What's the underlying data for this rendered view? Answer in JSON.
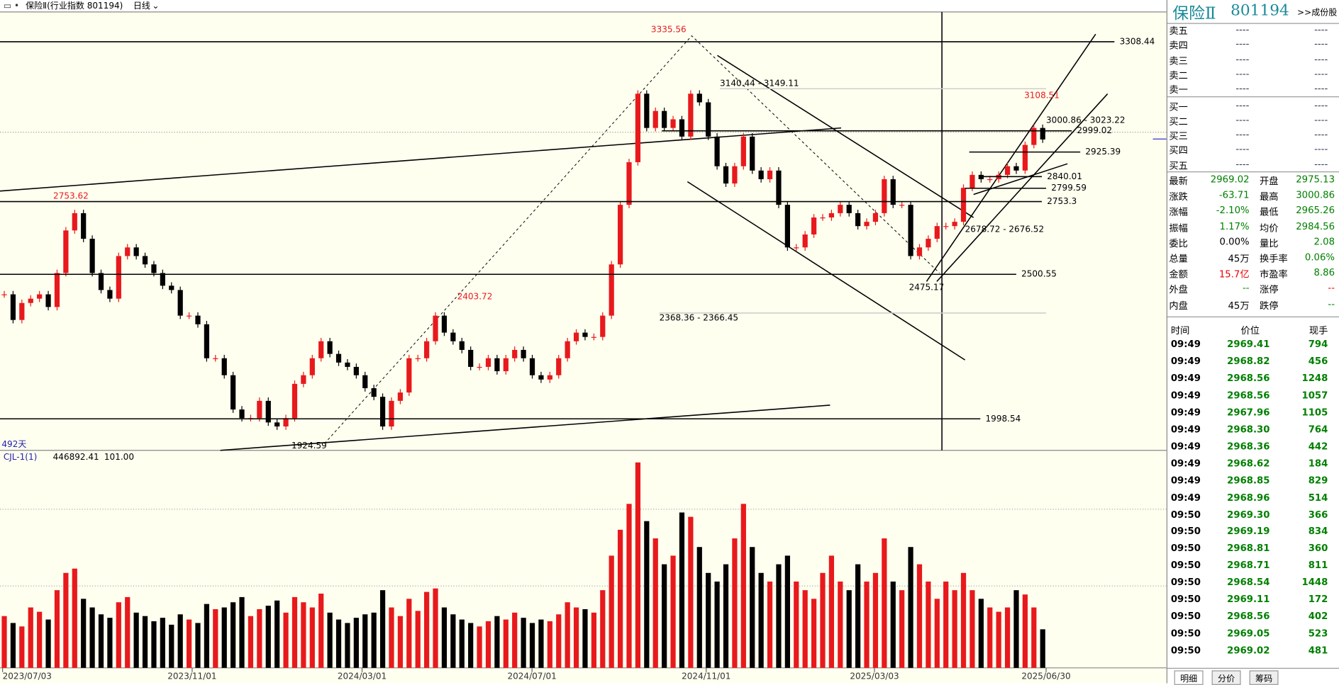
{
  "header": {
    "title": "保险Ⅱ(行业指数 801194)",
    "period": "日线"
  },
  "price_chart": {
    "type": "candlestick",
    "ylim": [
      1889,
      3412
    ],
    "closes": [
      2431,
      2342,
      2401,
      2416,
      2431,
      2387,
      2505,
      2653,
      2713,
      2624,
      2505,
      2446,
      2416,
      2564,
      2594,
      2564,
      2535,
      2505,
      2461,
      2446,
      2357,
      2357,
      2327,
      2209,
      2209,
      2150,
      2031,
      2001,
      2001,
      2061,
      1986,
      1972,
      2001,
      2120,
      2150,
      2209,
      2268,
      2224,
      2194,
      2179,
      2150,
      2105,
      2075,
      1972,
      2061,
      2090,
      2209,
      2209,
      2268,
      2357,
      2298,
      2268,
      2238,
      2179,
      2179,
      2209,
      2164,
      2209,
      2238,
      2209,
      2150,
      2135,
      2150,
      2209,
      2268,
      2298,
      2283,
      2283,
      2357,
      2535,
      2742,
      2890,
      3128,
      3009,
      3068,
      3009,
      3039,
      2979,
      3128,
      3098,
      2979,
      2876,
      2816,
      2876,
      2979,
      2861,
      2831,
      2861,
      2742,
      2594,
      2594,
      2639,
      2698,
      2698,
      2713,
      2742,
      2713,
      2668,
      2683,
      2713,
      2831,
      2742,
      2742,
      2564,
      2594,
      2624,
      2668,
      2668,
      2683,
      2801,
      2846,
      2831,
      2831,
      2846,
      2876,
      2861,
      2950,
      3009,
      2969
    ],
    "levels": [
      3308.44,
      2999.02,
      2925.39,
      2840.01,
      2799.59,
      2753.3,
      2500.55,
      1998.54
    ],
    "ranges": [
      "3140.44 - 3149.11",
      "2368.36 - 2366.45",
      "3000.86 - 3023.22",
      "2678.72 - 2676.52"
    ],
    "high_labels": [
      3335.56,
      2753.62,
      2403.72,
      3108.51
    ],
    "low_labels": [
      1924.59,
      2475.17
    ],
    "days_label": "492天",
    "dates": [
      "2023/07/03",
      "2023/11/01",
      "2024/03/01",
      "2024/07/01",
      "2024/11/01",
      "2025/03/03",
      "2025/06/30"
    ]
  },
  "volume_chart": {
    "type": "bar",
    "name": "CJL-1(1)",
    "param": "101.00",
    "ylim": [
      0,
      2500000
    ],
    "values": [
      600000,
      520000,
      480000,
      700000,
      650000,
      560000,
      900000,
      1100000,
      1150000,
      800000,
      700000,
      620000,
      580000,
      760000,
      820000,
      640000,
      600000,
      540000,
      580000,
      500000,
      620000,
      560000,
      520000,
      740000,
      680000,
      700000,
      760000,
      820000,
      600000,
      680000,
      720000,
      780000,
      640000,
      820000,
      760000,
      700000,
      860000,
      640000,
      560000,
      520000,
      580000,
      620000,
      640000,
      900000,
      700000,
      600000,
      800000,
      660000,
      880000,
      920000,
      700000,
      620000,
      560000,
      520000,
      480000,
      540000,
      600000,
      560000,
      640000,
      580000,
      520000,
      560000,
      540000,
      620000,
      760000,
      700000,
      680000,
      640000,
      900000,
      1300000,
      1600000,
      1900000,
      2380000,
      1700000,
      1500000,
      1200000,
      1300000,
      1800000,
      1750000,
      1400000,
      1100000,
      1000000,
      1200000,
      1500000,
      1900000,
      1400000,
      1100000,
      1000000,
      1200000,
      1300000,
      1000000,
      900000,
      800000,
      1100000,
      1300000,
      1000000,
      900000,
      1200000,
      1000000,
      1100000,
      1500000,
      1000000,
      900000,
      1400000,
      1200000,
      1000000,
      800000,
      1000000,
      900000,
      1100000,
      900000,
      800000,
      700000,
      650000,
      700000,
      900000,
      850000,
      700000,
      446892.41
    ]
  },
  "quote": {
    "name": "保险Ⅱ",
    "code": "801194",
    "link": ">>成份股",
    "book": [
      [
        "卖五",
        "----",
        "----"
      ],
      [
        "卖四",
        "----",
        "----"
      ],
      [
        "卖三",
        "----",
        "----"
      ],
      [
        "卖二",
        "----",
        "----"
      ],
      [
        "卖一",
        "----",
        "----"
      ],
      [
        "买一",
        "----",
        "----"
      ],
      [
        "买二",
        "----",
        "----"
      ],
      [
        "买三",
        "----",
        "----"
      ],
      [
        "买四",
        "----",
        "----"
      ],
      [
        "买五",
        "----",
        "----"
      ]
    ],
    "stats": [
      [
        "最新",
        "2969.02",
        "开盘",
        "2975.13"
      ],
      [
        "涨跌",
        "-63.71",
        "最高",
        "3000.86"
      ],
      [
        "涨幅",
        "-2.10%",
        "最低",
        "2965.26"
      ],
      [
        "振幅",
        "1.17%",
        "均价",
        "2984.56"
      ],
      [
        "委比",
        "0.00%",
        "量比",
        "2.08"
      ],
      [
        "总量",
        "45万",
        "换手率",
        "0.06%"
      ],
      [
        "金额",
        "15.7亿",
        "市盈率",
        "8.86"
      ],
      [
        "外盘",
        "--",
        "涨停",
        "--"
      ],
      [
        "内盘",
        "45万",
        "跌停",
        "--"
      ]
    ]
  },
  "trades": {
    "header": [
      "时间",
      "价位",
      "现手"
    ],
    "rows": [
      [
        "09:49",
        "2969.41",
        "794"
      ],
      [
        "09:49",
        "2968.82",
        "456"
      ],
      [
        "09:49",
        "2968.56",
        "1248"
      ],
      [
        "09:49",
        "2968.56",
        "1057"
      ],
      [
        "09:49",
        "2967.96",
        "1105"
      ],
      [
        "09:49",
        "2968.30",
        "764"
      ],
      [
        "09:49",
        "2968.36",
        "442"
      ],
      [
        "09:49",
        "2968.62",
        "184"
      ],
      [
        "09:49",
        "2968.85",
        "829"
      ],
      [
        "09:49",
        "2968.96",
        "514"
      ],
      [
        "09:50",
        "2969.30",
        "366"
      ],
      [
        "09:50",
        "2969.19",
        "834"
      ],
      [
        "09:50",
        "2968.81",
        "360"
      ],
      [
        "09:50",
        "2968.71",
        "811"
      ],
      [
        "09:50",
        "2968.54",
        "1448"
      ],
      [
        "09:50",
        "2969.11",
        "172"
      ],
      [
        "09:50",
        "2968.56",
        "402"
      ],
      [
        "09:50",
        "2969.05",
        "523"
      ],
      [
        "09:50",
        "2969.02",
        "481"
      ]
    ]
  },
  "tabs": [
    "明细",
    "分价",
    "筹码"
  ]
}
